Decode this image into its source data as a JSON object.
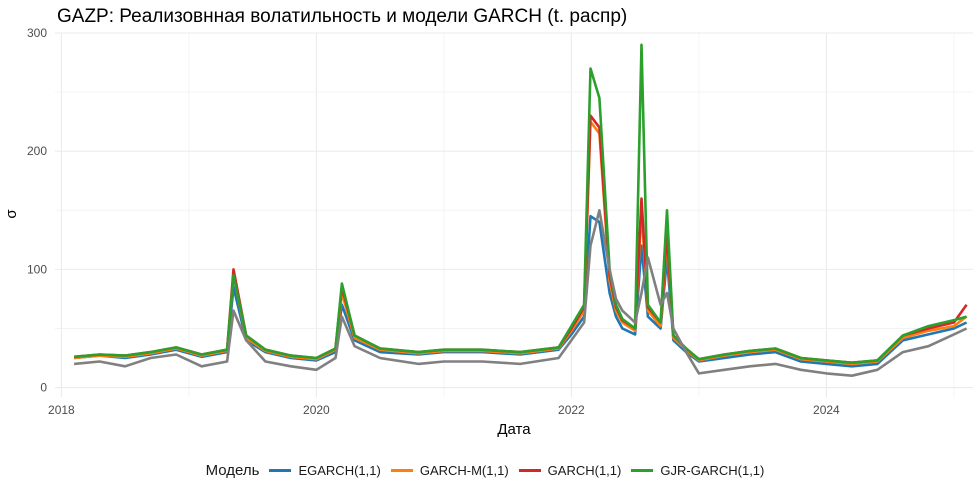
{
  "chart_data": {
    "type": "line",
    "title": "GAZP: Реализовнная волатильность и модели GARCH (t. распр)",
    "xlabel": "Дата",
    "ylabel": "σ",
    "x_ticks": [
      "2018",
      "2020",
      "2022",
      "2024"
    ],
    "y_ticks": [
      "0",
      "100",
      "200",
      "300"
    ],
    "xlim": [
      2017.95,
      2025.15
    ],
    "ylim": [
      -8,
      300
    ],
    "grid": true,
    "legend_position": "bottom",
    "legend_title": "Модель",
    "x": [
      2018.1,
      2018.3,
      2018.5,
      2018.7,
      2018.9,
      2019.1,
      2019.3,
      2019.35,
      2019.45,
      2019.6,
      2019.8,
      2020.0,
      2020.15,
      2020.2,
      2020.3,
      2020.5,
      2020.8,
      2021.0,
      2021.3,
      2021.6,
      2021.9,
      2022.0,
      2022.1,
      2022.15,
      2022.22,
      2022.3,
      2022.35,
      2022.4,
      2022.5,
      2022.55,
      2022.6,
      2022.7,
      2022.75,
      2022.8,
      2022.9,
      2023.0,
      2023.2,
      2023.4,
      2023.6,
      2023.8,
      2024.0,
      2024.2,
      2024.4,
      2024.6,
      2024.8,
      2025.0,
      2025.1
    ],
    "series": [
      {
        "name": "EGARCH(1,1)",
        "color": "#1f77b4",
        "values": [
          25,
          27,
          25,
          28,
          32,
          26,
          30,
          85,
          40,
          30,
          25,
          23,
          30,
          70,
          40,
          30,
          28,
          30,
          30,
          28,
          32,
          45,
          60,
          145,
          140,
          80,
          60,
          50,
          45,
          120,
          60,
          50,
          110,
          40,
          30,
          22,
          25,
          28,
          30,
          22,
          20,
          18,
          20,
          40,
          45,
          50,
          55
        ]
      },
      {
        "name": "GARCH-M(1,1)",
        "color": "#ff7f0e",
        "values": [
          25,
          27,
          26,
          29,
          33,
          27,
          31,
          95,
          42,
          31,
          26,
          24,
          32,
          80,
          42,
          32,
          29,
          31,
          31,
          29,
          33,
          48,
          65,
          225,
          215,
          90,
          65,
          55,
          48,
          150,
          65,
          52,
          125,
          42,
          32,
          23,
          27,
          30,
          32,
          24,
          22,
          20,
          22,
          42,
          48,
          52,
          60
        ]
      },
      {
        "name": "GARCH(1,1)",
        "color": "#d62728",
        "values": [
          26,
          28,
          27,
          30,
          34,
          28,
          32,
          100,
          44,
          32,
          27,
          25,
          33,
          85,
          44,
          33,
          30,
          32,
          32,
          30,
          34,
          50,
          68,
          230,
          220,
          95,
          68,
          57,
          50,
          160,
          68,
          55,
          130,
          44,
          33,
          24,
          28,
          31,
          33,
          25,
          23,
          21,
          23,
          44,
          50,
          55,
          70
        ]
      },
      {
        "name": "GJR-GARCH(1,1)",
        "color": "#2ca02c",
        "values": [
          26,
          28,
          27,
          30,
          34,
          28,
          32,
          95,
          44,
          32,
          27,
          25,
          33,
          88,
          44,
          33,
          30,
          32,
          32,
          30,
          34,
          52,
          70,
          270,
          245,
          100,
          70,
          58,
          50,
          290,
          70,
          55,
          150,
          44,
          33,
          24,
          28,
          31,
          33,
          25,
          23,
          21,
          23,
          44,
          52,
          57,
          60
        ]
      },
      {
        "values": [
          20,
          22,
          18,
          25,
          28,
          18,
          22,
          65,
          40,
          22,
          18,
          15,
          25,
          60,
          35,
          25,
          20,
          22,
          22,
          20,
          25,
          40,
          55,
          120,
          150,
          100,
          75,
          65,
          55,
          80,
          110,
          70,
          80,
          50,
          30,
          12,
          15,
          18,
          20,
          15,
          12,
          10,
          15,
          30,
          35,
          45,
          50
        ]
      }
    ]
  }
}
